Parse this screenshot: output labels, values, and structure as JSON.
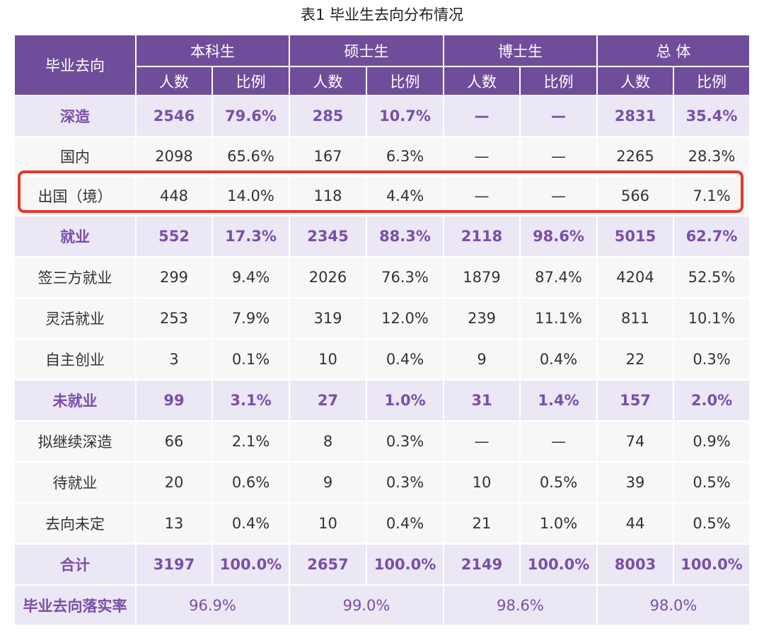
{
  "caption": "表1  毕业生去向分布情况",
  "header": {
    "row_label": "毕业去向",
    "groups": [
      "本科生",
      "硕士生",
      "博士生",
      "总  体"
    ],
    "sub": [
      "人数",
      "比例"
    ]
  },
  "rows": [
    {
      "label": "深造",
      "cells": [
        "2546",
        "79.6%",
        "285",
        "10.7%",
        "—",
        "—",
        "2831",
        "35.4%"
      ]
    },
    {
      "label": "国内",
      "cells": [
        "2098",
        "65.6%",
        "167",
        "6.3%",
        "—",
        "—",
        "2265",
        "28.3%"
      ]
    },
    {
      "label": "出国（境）",
      "cells": [
        "448",
        "14.0%",
        "118",
        "4.4%",
        "—",
        "—",
        "566",
        "7.1%"
      ]
    },
    {
      "label": "就业",
      "cells": [
        "552",
        "17.3%",
        "2345",
        "88.3%",
        "2118",
        "98.6%",
        "5015",
        "62.7%"
      ]
    },
    {
      "label": "签三方就业",
      "cells": [
        "299",
        "9.4%",
        "2026",
        "76.3%",
        "1879",
        "87.4%",
        "4204",
        "52.5%"
      ]
    },
    {
      "label": "灵活就业",
      "cells": [
        "253",
        "7.9%",
        "319",
        "12.0%",
        "239",
        "11.1%",
        "811",
        "10.1%"
      ]
    },
    {
      "label": "自主创业",
      "cells": [
        "3",
        "0.1%",
        "10",
        "0.4%",
        "9",
        "0.4%",
        "22",
        "0.3%"
      ]
    },
    {
      "label": "未就业",
      "cells": [
        "99",
        "3.1%",
        "27",
        "1.0%",
        "31",
        "1.4%",
        "157",
        "2.0%"
      ]
    },
    {
      "label": "拟继续深造",
      "cells": [
        "66",
        "2.1%",
        "8",
        "0.3%",
        "—",
        "—",
        "74",
        "0.9%"
      ]
    },
    {
      "label": "待就业",
      "cells": [
        "20",
        "0.6%",
        "9",
        "0.3%",
        "10",
        "0.5%",
        "39",
        "0.5%"
      ]
    },
    {
      "label": "去向未定",
      "cells": [
        "13",
        "0.4%",
        "10",
        "0.4%",
        "21",
        "1.0%",
        "44",
        "0.5%"
      ]
    },
    {
      "label": "合计",
      "cells": [
        "3197",
        "100.0%",
        "2657",
        "100.0%",
        "2149",
        "100.0%",
        "8003",
        "100.0%"
      ]
    }
  ],
  "rate_row": {
    "label": "毕业去向落实率",
    "values": [
      "96.9%",
      "99.0%",
      "98.6%",
      "98.0%"
    ]
  },
  "colors": {
    "header_bg": "#704d9b",
    "category_bg": "#ece7f4",
    "category_text": "#7a4fa8",
    "sub_bg": "#f7f7f7",
    "highlight_border": "#e8372b"
  }
}
